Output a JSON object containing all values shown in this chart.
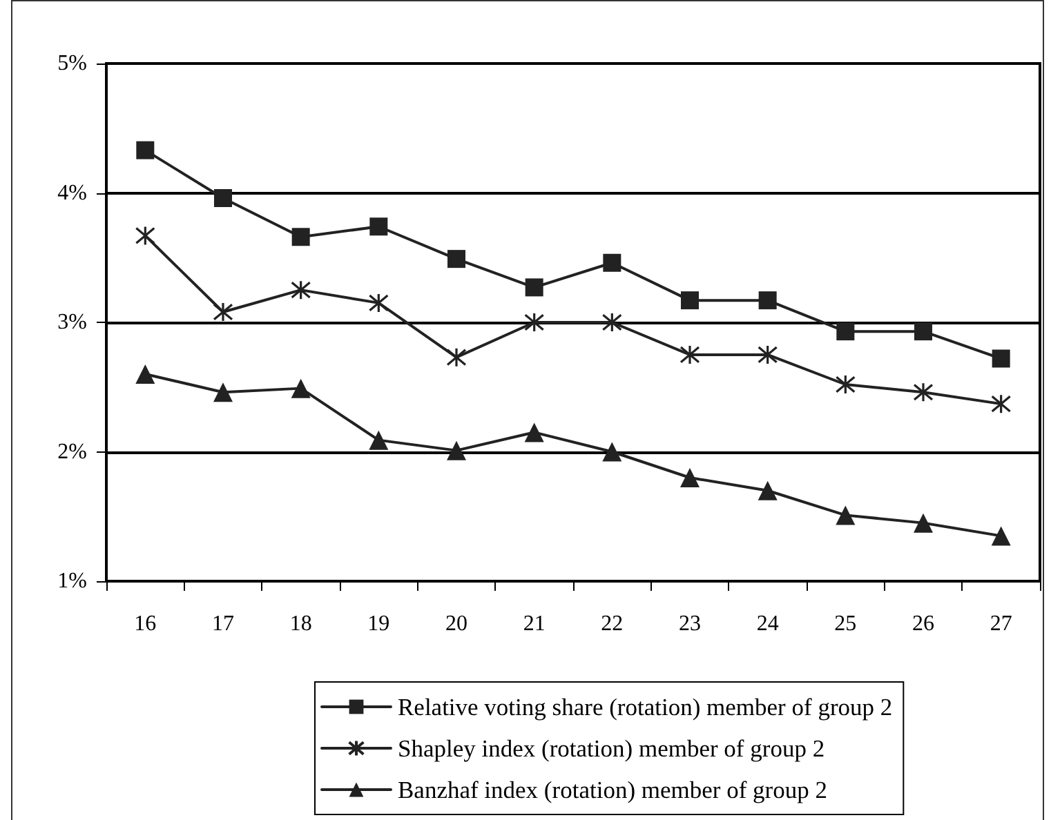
{
  "chart_data": {
    "type": "line",
    "categories": [
      "16",
      "17",
      "18",
      "19",
      "20",
      "21",
      "22",
      "23",
      "24",
      "25",
      "26",
      "27"
    ],
    "ylim": [
      1,
      5
    ],
    "yticks": [
      {
        "value": 1,
        "label": "1%"
      },
      {
        "value": 2,
        "label": "2%"
      },
      {
        "value": 3,
        "label": "3%"
      },
      {
        "value": 4,
        "label": "4%"
      },
      {
        "value": 5,
        "label": "5%"
      }
    ],
    "grid": "y",
    "legend": "bottom",
    "series": [
      {
        "name": "Relative voting share (rotation) member of group 2",
        "color": "#222222",
        "marker": "square",
        "values": [
          4.33,
          3.96,
          3.66,
          3.74,
          3.49,
          3.27,
          3.46,
          3.17,
          3.17,
          2.93,
          2.93,
          2.72
        ]
      },
      {
        "name": "Shapley index (rotation) member of group 2",
        "color": "#222222",
        "marker": "cross",
        "values": [
          3.67,
          3.08,
          3.25,
          3.15,
          2.73,
          3.0,
          3.0,
          2.75,
          2.75,
          2.52,
          2.46,
          2.37
        ]
      },
      {
        "name": "Banzhaf index (rotation) member of group 2",
        "color": "#222222",
        "marker": "triangle",
        "values": [
          2.6,
          2.46,
          2.49,
          2.09,
          2.01,
          2.15,
          2.0,
          1.8,
          1.7,
          1.51,
          1.45,
          1.35
        ]
      }
    ]
  }
}
